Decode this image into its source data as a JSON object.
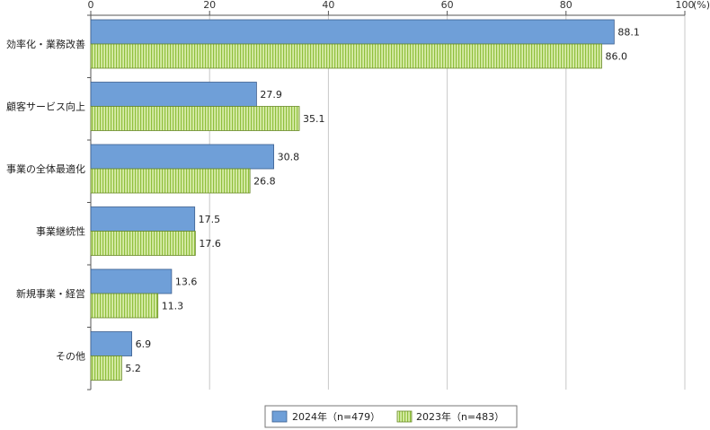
{
  "chart_data": {
    "type": "bar",
    "orientation": "horizontal",
    "xlim": [
      0,
      100
    ],
    "ticks": [
      0,
      20,
      40,
      60,
      80,
      100
    ],
    "tick_labels": [
      "0",
      "20",
      "40",
      "60",
      "80",
      "100"
    ],
    "unit_label": "(%)",
    "grid": true,
    "legend_position": "bottom",
    "categories": [
      "効率化・業務改善",
      "顧客サービス向上",
      "事業の全体最適化",
      "事業継続性",
      "新規事業・経営",
      "その他"
    ],
    "series": [
      {
        "name": "2024年（n=479）",
        "values": [
          88.1,
          27.9,
          30.8,
          17.5,
          13.6,
          6.9
        ],
        "value_labels": [
          "88.1",
          "27.9",
          "30.8",
          "17.5",
          "13.6",
          "6.9"
        ],
        "color": "#6f9fd8"
      },
      {
        "name": "2023年（n=483）",
        "values": [
          86.0,
          35.1,
          26.8,
          17.6,
          11.3,
          5.2
        ],
        "value_labels": [
          "86.0",
          "35.1",
          "26.8",
          "17.6",
          "11.3",
          "5.2"
        ],
        "color": "#cde58f",
        "pattern": "vertical-stripes"
      }
    ]
  }
}
